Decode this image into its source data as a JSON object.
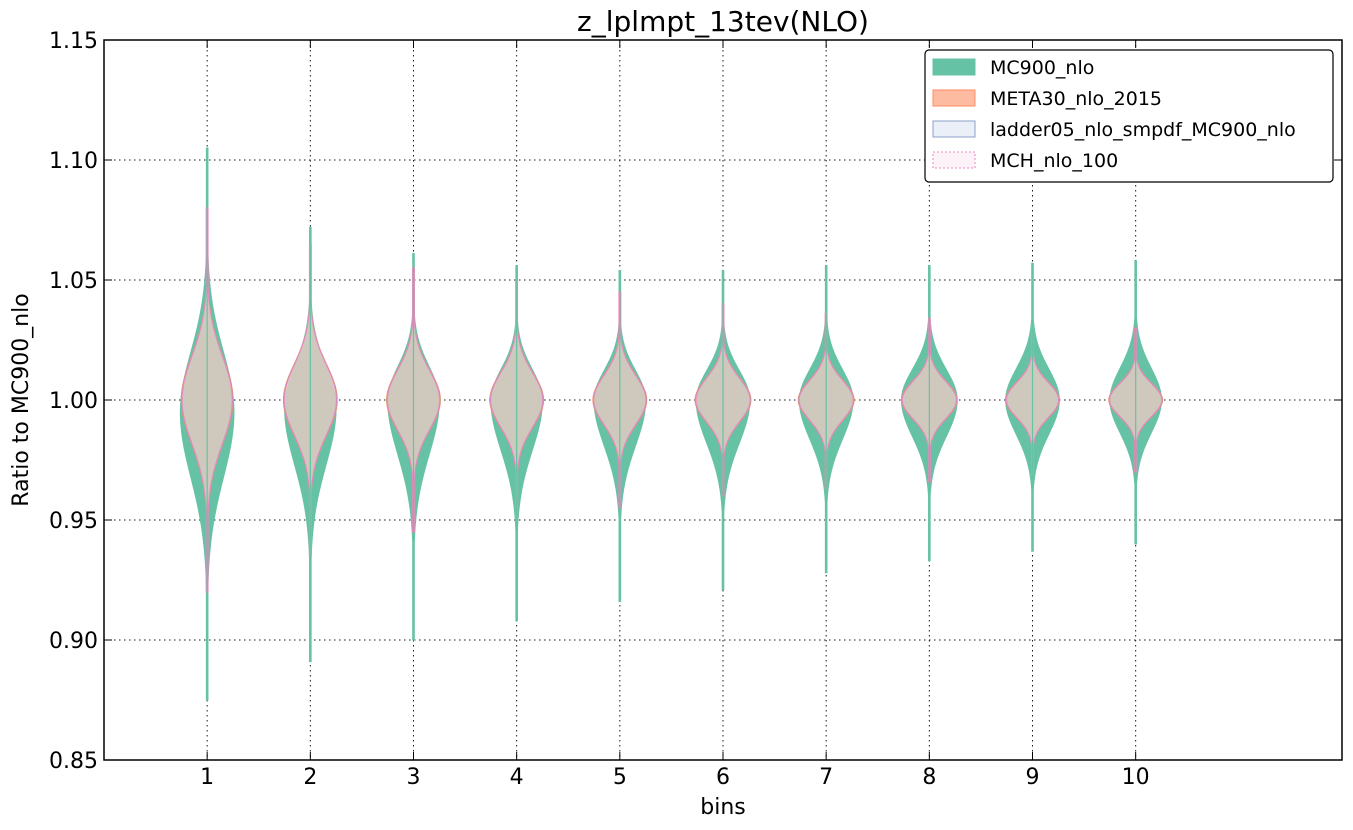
{
  "chart_data": {
    "type": "violin",
    "title": "z_lplmpt_13tev(NLO)",
    "xlabel": "bins",
    "ylabel": "Ratio to MC900_nlo",
    "xlim": [
      0,
      12
    ],
    "ylim": [
      0.85,
      1.15
    ],
    "grid": true,
    "legend_position": "top-right",
    "categories": [
      "1",
      "2",
      "3",
      "4",
      "5",
      "6",
      "7",
      "8",
      "9",
      "10"
    ],
    "y_ticks": [
      "0.85",
      "0.90",
      "0.95",
      "1.00",
      "1.05",
      "1.10",
      "1.15"
    ],
    "series": [
      {
        "name": "MC900_nlo",
        "color": "#66c2a5",
        "fill": "#66c2a5",
        "fill_opacity": 1.0,
        "min": [
          0.875,
          0.891,
          0.9,
          0.908,
          0.916,
          0.921,
          0.928,
          0.933,
          0.937,
          0.94
        ],
        "max": [
          1.105,
          1.072,
          1.061,
          1.056,
          1.054,
          1.054,
          1.056,
          1.056,
          1.057,
          1.058
        ],
        "center": [
          0.995,
          0.997,
          1.0,
          1.0,
          1.0,
          1.0,
          1.0,
          1.0,
          1.0,
          1.0
        ],
        "half_width": [
          0.26,
          0.25,
          0.25,
          0.25,
          0.25,
          0.26,
          0.26,
          0.27,
          0.26,
          0.25
        ]
      },
      {
        "name": "META30_nlo_2015",
        "color": "#fc8d62",
        "fill": "#fc8d62",
        "fill_opacity": 0.5,
        "min": [
          0.92,
          0.935,
          0.945,
          0.95,
          0.955,
          0.96,
          0.963,
          0.966,
          0.968,
          0.97
        ],
        "max": [
          1.08,
          1.065,
          1.055,
          1.05,
          1.045,
          1.04,
          1.036,
          1.034,
          1.032,
          1.03
        ],
        "center": [
          1.0,
          1.0,
          1.0,
          1.0,
          1.0,
          1.0,
          1.0,
          1.0,
          1.0,
          1.0
        ],
        "half_width": [
          0.25,
          0.26,
          0.26,
          0.26,
          0.26,
          0.27,
          0.27,
          0.27,
          0.26,
          0.26
        ]
      },
      {
        "name": "ladder05_nlo_smpdf_MC900_nlo",
        "color": "#8da0cb",
        "fill": "#dde5f4",
        "fill_opacity": 0.35
      },
      {
        "name": "MCH_nlo_100",
        "color": "#e78ac3",
        "fill": "#fdeaf5",
        "fill_opacity": 0.25
      }
    ]
  }
}
